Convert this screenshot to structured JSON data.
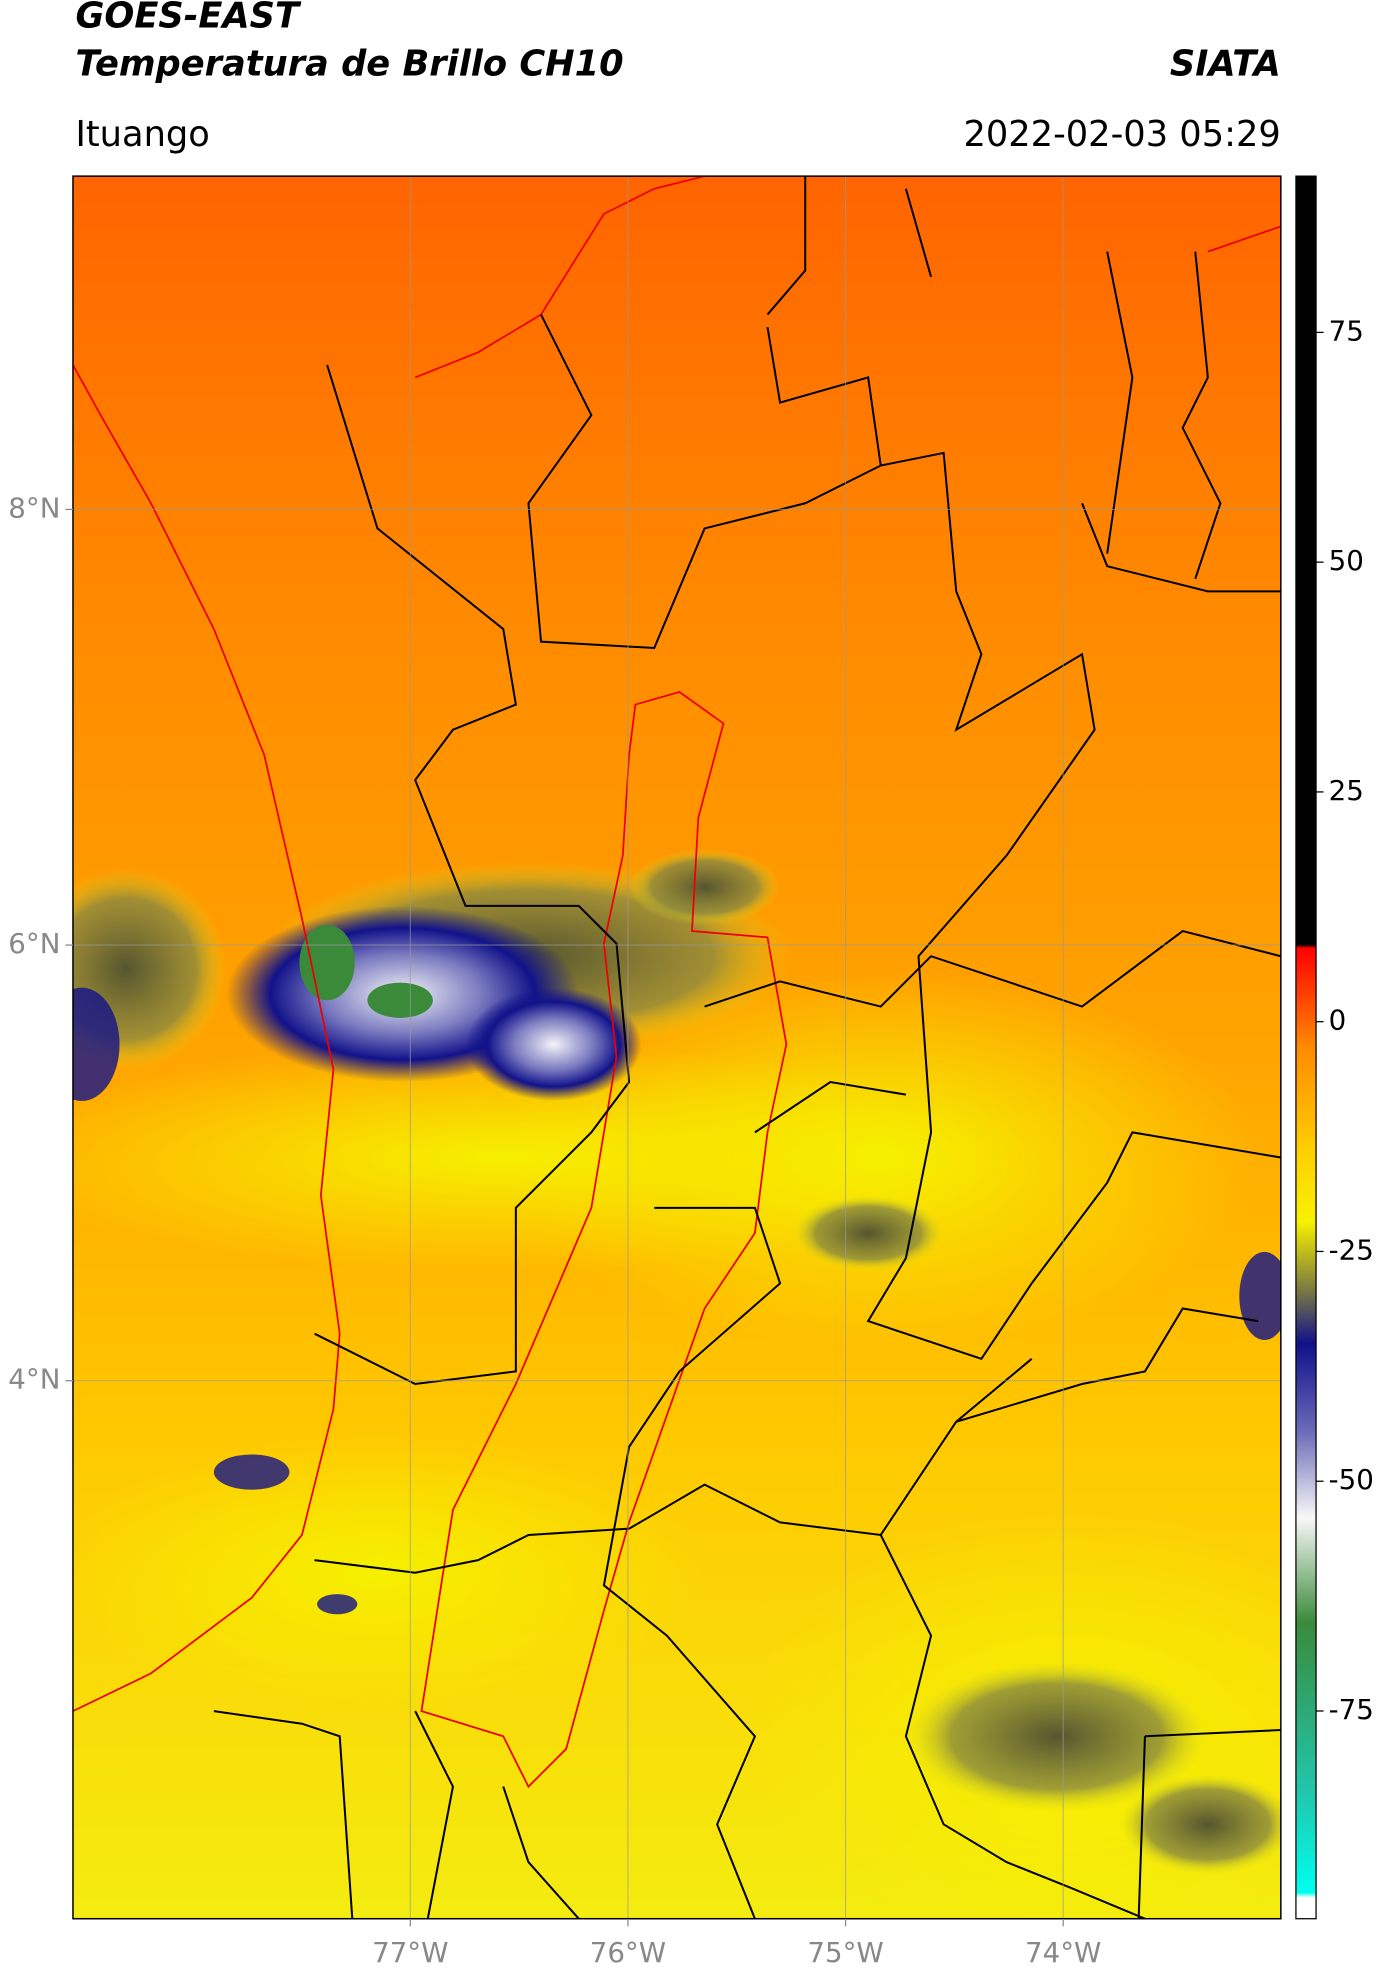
{
  "chart_data": {
    "type": "map",
    "title": "GOES-EAST",
    "subtitle": "Temperatura de Brillo CH10",
    "source": "SIATA",
    "region": "Ituango",
    "datetime": "2022-02-03 05:29",
    "xlim": [
      -78.55,
      -73.0
    ],
    "ylim": [
      1.53,
      9.53
    ],
    "xticks": [
      {
        "value": -77,
        "label": "77°W"
      },
      {
        "value": -76,
        "label": "76°W"
      },
      {
        "value": -75,
        "label": "75°W"
      },
      {
        "value": -74,
        "label": "74°W"
      }
    ],
    "yticks": [
      {
        "value": 8,
        "label": "8°N"
      },
      {
        "value": 6,
        "label": "6°N"
      },
      {
        "value": 4,
        "label": "4°N"
      }
    ],
    "grid": true,
    "colorbar": {
      "clim": [
        -97.6,
        92
      ],
      "ticks": [
        75,
        50,
        25,
        0,
        -25,
        -50,
        -75
      ]
    }
  }
}
